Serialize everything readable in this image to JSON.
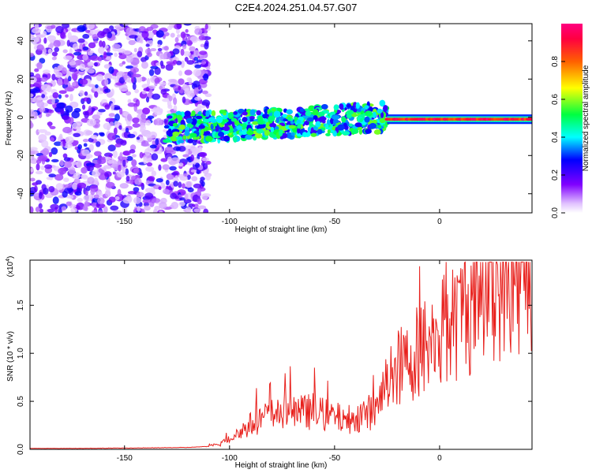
{
  "figure_title": "C2E4.2024.251.04.57.G07",
  "chart_data": [
    {
      "type": "heatmap",
      "xlabel": "Height of straight line (km)",
      "ylabel": "Frequency (Hz)",
      "xlim": [
        -195,
        44
      ],
      "ylim": [
        -50,
        49
      ],
      "xticks": [
        -150,
        -100,
        -50,
        0
      ],
      "yticks": [
        -40,
        -20,
        0,
        20,
        40
      ],
      "grid": false,
      "colorbar": {
        "label": "Normalized spectral amplitude",
        "range": [
          0.0,
          1.0
        ],
        "ticks": [
          "0.0",
          "0.2",
          "0.4",
          "0.6",
          "0.8"
        ],
        "colors": [
          "#ffffff",
          "#8000ff",
          "#0000ff",
          "#00ffff",
          "#00ff00",
          "#ffff00",
          "#ff8000",
          "#ff0000",
          "#ff00ff"
        ]
      },
      "features": [
        {
          "description_x_range_km": [
            -195,
            -110
          ],
          "frequency_spread_hz": [
            -50,
            49
          ],
          "amplitude": [
            0.0,
            0.25
          ]
        },
        {
          "description_x_range_km": [
            -130,
            -25
          ],
          "frequency_band_hz": [
            -10,
            5
          ],
          "amplitude": [
            0.2,
            0.6
          ]
        },
        {
          "description_x_range_km": [
            -25,
            44
          ],
          "frequency_band_hz": [
            -2,
            0
          ],
          "amplitude": [
            0.8,
            1.0
          ]
        }
      ]
    },
    {
      "type": "line",
      "xlabel": "Height of straight line (km)",
      "ylabel": "SNR (10 * v/v)",
      "y_multiplier": "(x10",
      "y_multiplier_exp": "4",
      "y_multiplier_close": ")",
      "xlim": [
        -195,
        44
      ],
      "ylim": [
        0,
        1.97
      ],
      "xticks": [
        -150,
        -100,
        -50,
        0
      ],
      "yticks": [
        "0.0",
        "0.5",
        "1.0",
        "1.5"
      ],
      "grid": false,
      "series": [
        {
          "color": "#e8201c",
          "x": [
            -195,
            -180,
            -160,
            -140,
            -120,
            -110,
            -105,
            -100,
            -95,
            -90,
            -85,
            -80,
            -75,
            -70,
            -65,
            -60,
            -55,
            -50,
            -45,
            -40,
            -35,
            -30,
            -25,
            -20,
            -15,
            -10,
            -5,
            0,
            5,
            10,
            15,
            20,
            25,
            30,
            35,
            40,
            44
          ],
          "y": [
            0.01,
            0.01,
            0.012,
            0.015,
            0.02,
            0.03,
            0.05,
            0.12,
            0.18,
            0.26,
            0.32,
            0.36,
            0.38,
            0.4,
            0.38,
            0.4,
            0.36,
            0.34,
            0.3,
            0.34,
            0.38,
            0.4,
            0.7,
            0.85,
            0.9,
            1.05,
            1.1,
            1.2,
            1.25,
            1.4,
            1.5,
            1.62,
            1.72,
            1.8,
            1.86,
            1.9,
            1.92
          ]
        }
      ]
    }
  ]
}
